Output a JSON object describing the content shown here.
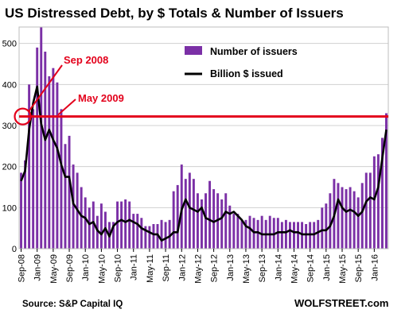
{
  "chart_data": {
    "type": "bar",
    "title": "US Distressed Debt, by $ Totals & Number of Issuers",
    "xlabel": "",
    "ylabel": "",
    "ylim": [
      0,
      540
    ],
    "yticks": [
      0,
      100,
      200,
      300,
      400,
      500
    ],
    "grid": true,
    "legend_position": "top-right",
    "x_tick_labels": [
      "Sep-08",
      "Jan-09",
      "May-09",
      "Sep-09",
      "Jan-10",
      "May-10",
      "Sep-10",
      "Jan-11",
      "May-11",
      "Sep-11",
      "Jan-12",
      "May-12",
      "Sep-12",
      "Jan-13",
      "May-13",
      "Sep-13",
      "Jan-14",
      "May-14",
      "Sep-14",
      "Jan-15",
      "May-15",
      "Sep-15",
      "Jan-16"
    ],
    "series": [
      {
        "name": "Number of issuers",
        "kind": "bar",
        "color": "#7b30a6",
        "values": [
          185,
          215,
          400,
          340,
          490,
          540,
          480,
          420,
          440,
          405,
          340,
          255,
          275,
          205,
          185,
          150,
          125,
          100,
          115,
          80,
          110,
          90,
          65,
          65,
          115,
          115,
          120,
          115,
          85,
          85,
          75,
          55,
          55,
          60,
          60,
          70,
          65,
          70,
          140,
          155,
          205,
          170,
          185,
          170,
          135,
          120,
          135,
          165,
          145,
          135,
          120,
          135,
          105,
          85,
          85,
          70,
          70,
          80,
          75,
          70,
          80,
          70,
          80,
          75,
          75,
          65,
          70,
          65,
          65,
          65,
          65,
          60,
          65,
          65,
          70,
          100,
          110,
          135,
          170,
          160,
          150,
          145,
          150,
          140,
          125,
          160,
          185,
          185,
          225,
          230,
          270,
          330
        ]
      },
      {
        "name": "Billion $ issued",
        "kind": "line",
        "color": "#000000",
        "values": [
          165,
          190,
          290,
          355,
          395,
          305,
          265,
          290,
          265,
          245,
          205,
          175,
          175,
          110,
          95,
          80,
          75,
          60,
          65,
          45,
          35,
          50,
          30,
          55,
          65,
          70,
          65,
          70,
          65,
          60,
          50,
          45,
          40,
          35,
          35,
          20,
          25,
          30,
          40,
          40,
          95,
          120,
          100,
          95,
          90,
          100,
          75,
          70,
          65,
          70,
          75,
          90,
          85,
          90,
          80,
          70,
          55,
          50,
          40,
          40,
          35,
          35,
          35,
          35,
          40,
          40,
          40,
          45,
          40,
          40,
          35,
          35,
          35,
          35,
          40,
          45,
          45,
          55,
          80,
          120,
          100,
          90,
          95,
          90,
          80,
          90,
          115,
          125,
          120,
          150,
          220,
          290
        ]
      }
    ],
    "annotations": [
      {
        "label": "Sep 2008",
        "color": "#e3001b"
      },
      {
        "label": "May 2009",
        "color": "#e3001b"
      }
    ],
    "reference_line": {
      "value": 322,
      "color": "#e3001b"
    }
  },
  "footer": {
    "source": "Source: S&P Capital IQ",
    "brand": "WOLFSTREET.com"
  }
}
